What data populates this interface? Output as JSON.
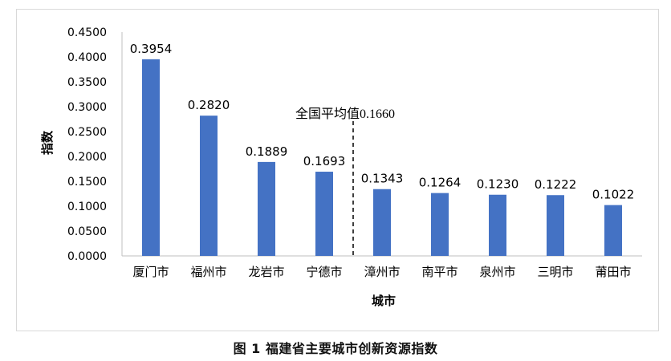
{
  "figure_caption": "图 1 福建省主要城市创新资源指数",
  "chart_data": {
    "type": "bar",
    "categories": [
      "厦门市",
      "福州市",
      "龙岩市",
      "宁德市",
      "漳州市",
      "南平市",
      "泉州市",
      "三明市",
      "莆田市"
    ],
    "values": [
      0.3954,
      0.282,
      0.1889,
      0.1693,
      0.1343,
      0.1264,
      0.123,
      0.1222,
      0.1022
    ],
    "value_labels": [
      "0.3954",
      "0.2820",
      "0.1889",
      "0.1693",
      "0.1343",
      "0.1264",
      "0.1230",
      "0.1222",
      "0.1022"
    ],
    "xlabel": "城市",
    "ylabel": "指数",
    "ylim": [
      0,
      0.45
    ],
    "y_ticks": [
      "0.0000",
      "0.0500",
      "0.1000",
      "0.1500",
      "0.2000",
      "0.2500",
      "0.3000",
      "0.3500",
      "0.4000",
      "0.4500"
    ],
    "grid": false,
    "bar_color": "#4472C4",
    "reference_line": {
      "label": "全国平均值0.1660",
      "value": 0.166,
      "style": "dashed",
      "between_categories": [
        "宁德市",
        "漳州市"
      ]
    }
  }
}
